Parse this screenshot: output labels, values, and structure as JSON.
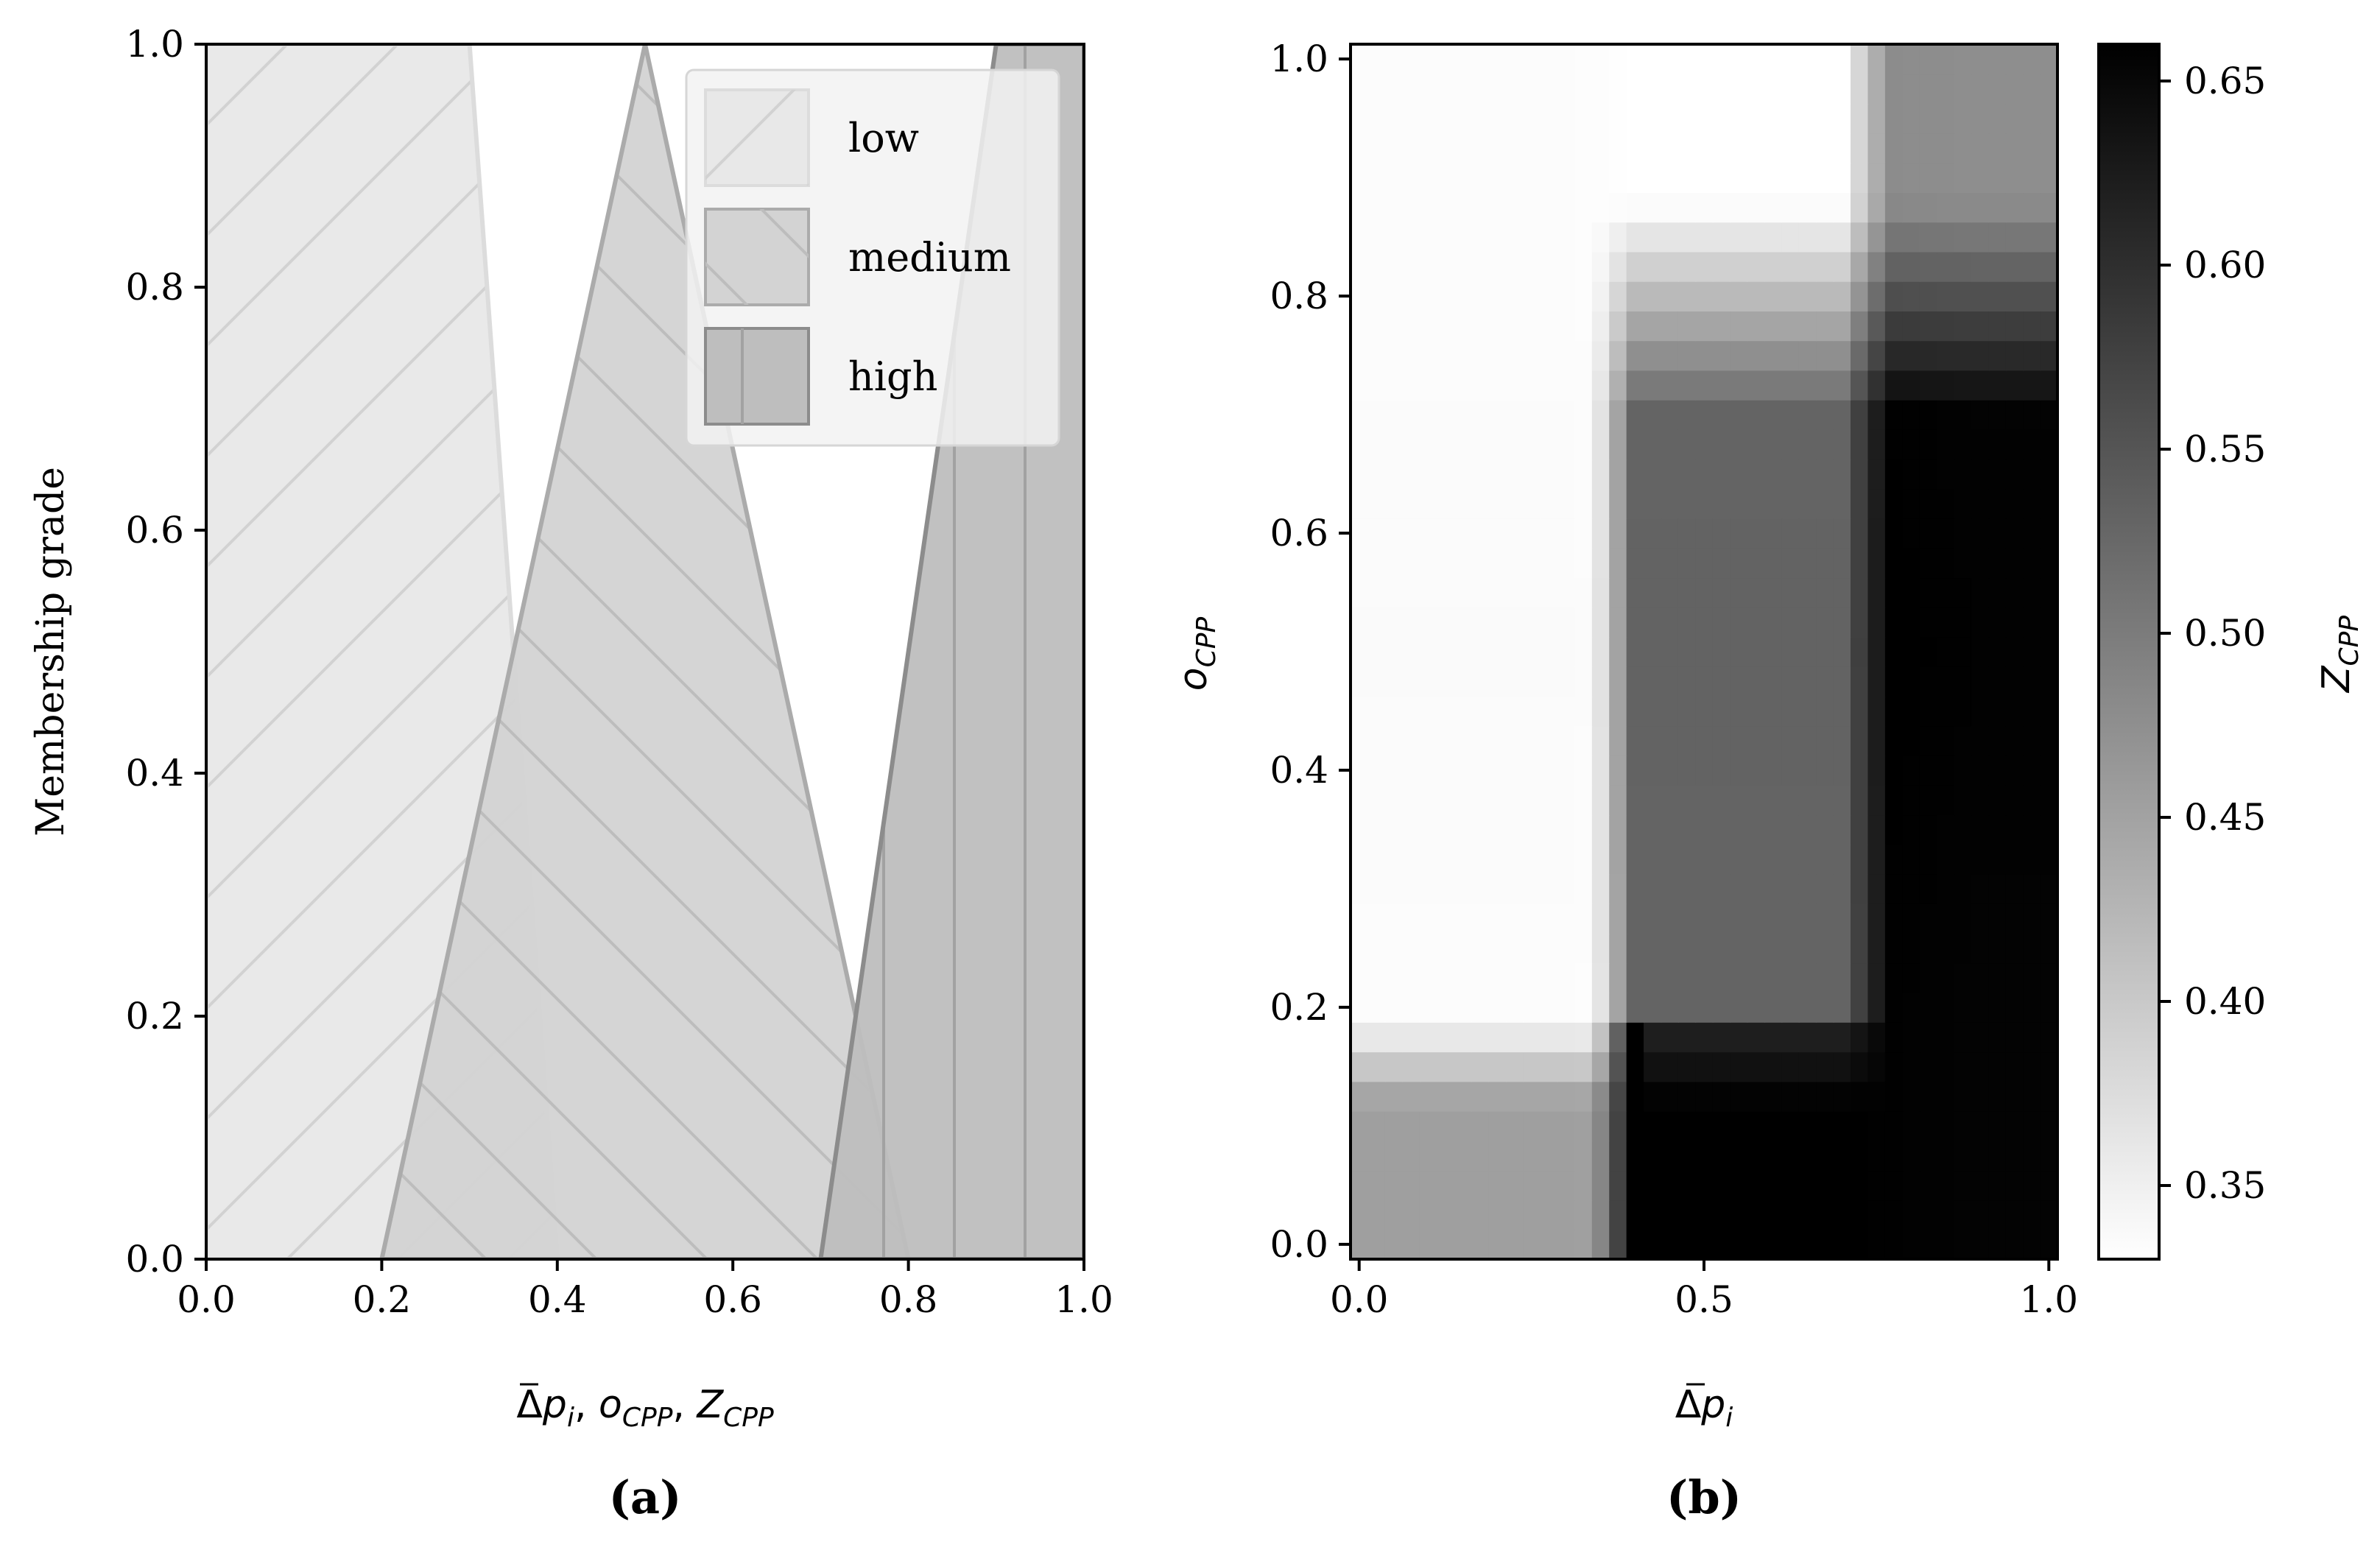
{
  "chart_data": [
    {
      "type": "area",
      "panel_label": "(a)",
      "ylabel": "Membership grade",
      "xlabel_parts": {
        "delta": "Δ",
        "p": "p",
        "sub_i": "i",
        "sep": ", ",
        "o": "o",
        "z": "Z",
        "sub_cpp": "CPP"
      },
      "xlim": [
        0,
        1
      ],
      "ylim": [
        0,
        1
      ],
      "xticks": [
        "0.0",
        "0.2",
        "0.4",
        "0.6",
        "0.8",
        "1.0"
      ],
      "yticks": [
        "0.0",
        "0.2",
        "0.4",
        "0.6",
        "0.8",
        "1.0"
      ],
      "legend_position": "top-right",
      "series": [
        {
          "name": "low",
          "hatch": "forward-diagonal",
          "fill": "#e8e8e8",
          "edge": "#dcdcdc",
          "points": [
            [
              0,
              0
            ],
            [
              0,
              1
            ],
            [
              0.3,
              1
            ],
            [
              0.4,
              0
            ]
          ]
        },
        {
          "name": "medium",
          "hatch": "backward-diagonal",
          "fill": "#d3d3d3",
          "edge": "#ababab",
          "points": [
            [
              0.2,
              0
            ],
            [
              0.5,
              1
            ],
            [
              0.8,
              0
            ]
          ]
        },
        {
          "name": "high",
          "hatch": "vertical",
          "fill": "#bebebe",
          "edge": "#8c8c8c",
          "points": [
            [
              0.7,
              0
            ],
            [
              0.9,
              1
            ],
            [
              1,
              1
            ],
            [
              1,
              0
            ]
          ]
        }
      ]
    },
    {
      "type": "heatmap",
      "panel_label": "(b)",
      "xlabel_parts": {
        "delta": "Δ",
        "p": "p",
        "sub_i": "i"
      },
      "ylabel_parts": {
        "o": "o",
        "sub_cpp": "CPP"
      },
      "colorbar_label_parts": {
        "z": "Z",
        "sub_cpp": "CPP"
      },
      "xlim": [
        0,
        1
      ],
      "ylim": [
        0,
        1
      ],
      "xticks": [
        "0.0",
        "0.5",
        "1.0"
      ],
      "yticks": [
        "0.0",
        "0.2",
        "0.4",
        "0.6",
        "0.8",
        "1.0"
      ],
      "colorbar_ticks": [
        "0.35",
        "0.40",
        "0.45",
        "0.50",
        "0.55",
        "0.60",
        "0.65"
      ],
      "colorbar_range": [
        0.33,
        0.66
      ],
      "colormap": "gray_r",
      "grid_size": 41,
      "regions_description_values": {
        "low_low": 0.45,
        "high_p_low_o": 0.66,
        "mid_mid": 0.53,
        "high_high": 0.48,
        "upper_left": 0.33
      }
    }
  ]
}
